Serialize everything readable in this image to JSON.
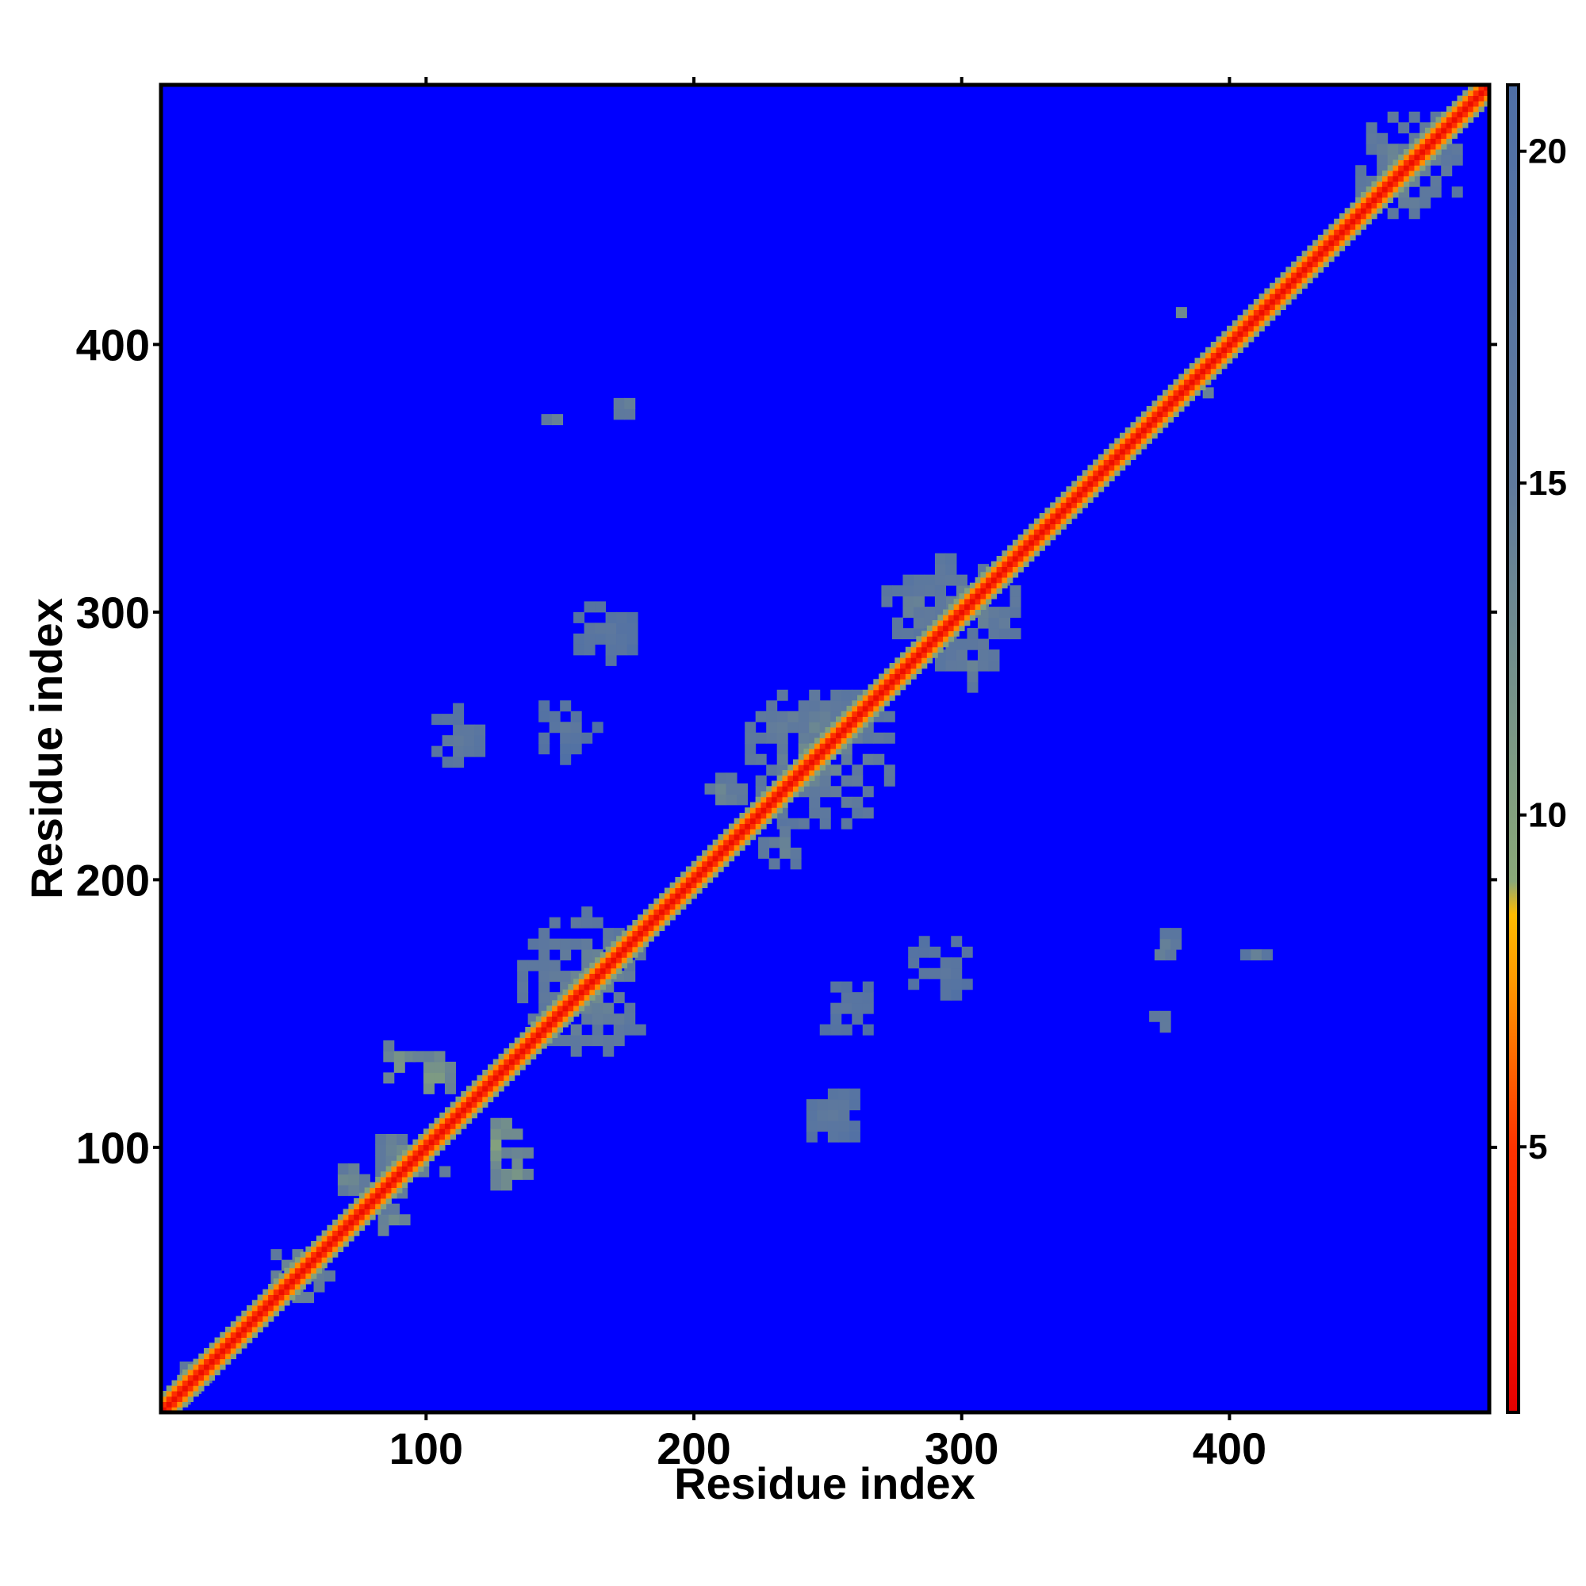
{
  "chart_data": {
    "type": "heatmap",
    "title": "",
    "xlabel": "Residue index",
    "ylabel": "Residue index",
    "xlim": [
      1,
      497
    ],
    "ylim": [
      1,
      497
    ],
    "x_ticks": [
      100,
      200,
      300,
      400
    ],
    "y_ticks": [
      100,
      200,
      300,
      400
    ],
    "colorbar": {
      "ticks": [
        5,
        10,
        15,
        20
      ],
      "range": [
        1,
        21
      ],
      "stops": [
        {
          "value": 1,
          "color": "#e60000"
        },
        {
          "value": 5,
          "color": "#ff3300"
        },
        {
          "value": 7.5,
          "color": "#ff9900"
        },
        {
          "value": 8.5,
          "color": "#ffbb00"
        },
        {
          "value": 9,
          "color": "#8aa878"
        },
        {
          "value": 15,
          "color": "#607a9c"
        },
        {
          "value": 21,
          "color": "#4f6fa6"
        }
      ],
      "background_color": "#0000ff"
    },
    "diagonal": {
      "core_value": 2,
      "band_halfwidth": 6
    },
    "contact_clusters": [
      {
        "x": 10,
        "y": 10,
        "r": 10,
        "value": 12
      },
      {
        "x": 50,
        "y": 50,
        "r": 12,
        "value": 11
      },
      {
        "x": 92,
        "y": 92,
        "r": 15,
        "value": 11
      },
      {
        "x": 158,
        "y": 158,
        "r": 28,
        "value": 12
      },
      {
        "x": 245,
        "y": 245,
        "r": 30,
        "value": 12
      },
      {
        "x": 300,
        "y": 300,
        "r": 22,
        "value": 12
      },
      {
        "x": 465,
        "y": 465,
        "r": 22,
        "value": 12
      },
      {
        "x": 130,
        "y": 90,
        "r": 10,
        "value": 10
      },
      {
        "x": 90,
        "y": 130,
        "r": 10,
        "value": 10
      },
      {
        "x": 100,
        "y": 125,
        "r": 9,
        "value": 9
      },
      {
        "x": 125,
        "y": 100,
        "r": 9,
        "value": 9
      },
      {
        "x": 70,
        "y": 85,
        "r": 7,
        "value": 11
      },
      {
        "x": 85,
        "y": 70,
        "r": 7,
        "value": 11
      },
      {
        "x": 145,
        "y": 372,
        "r": 6,
        "value": 12
      },
      {
        "x": 372,
        "y": 145,
        "r": 6,
        "value": 12
      },
      {
        "x": 172,
        "y": 374,
        "r": 6,
        "value": 12
      },
      {
        "x": 374,
        "y": 172,
        "r": 6,
        "value": 12
      },
      {
        "x": 375,
        "y": 175,
        "r": 5,
        "value": 13
      },
      {
        "x": 408,
        "y": 170,
        "r": 4,
        "value": 13
      },
      {
        "x": 380,
        "y": 410,
        "r": 4,
        "value": 12
      },
      {
        "x": 390,
        "y": 380,
        "r": 4,
        "value": 12
      },
      {
        "x": 280,
        "y": 300,
        "r": 14,
        "value": 13
      },
      {
        "x": 300,
        "y": 280,
        "r": 14,
        "value": 13
      },
      {
        "x": 110,
        "y": 250,
        "r": 12,
        "value": 14
      },
      {
        "x": 250,
        "y": 110,
        "r": 12,
        "value": 14
      },
      {
        "x": 290,
        "y": 165,
        "r": 14,
        "value": 15
      },
      {
        "x": 165,
        "y": 290,
        "r": 14,
        "value": 15
      },
      {
        "x": 255,
        "y": 150,
        "r": 12,
        "value": 15
      },
      {
        "x": 150,
        "y": 255,
        "r": 12,
        "value": 15
      },
      {
        "x": 230,
        "y": 210,
        "r": 10,
        "value": 12
      },
      {
        "x": 210,
        "y": 230,
        "r": 10,
        "value": 12
      }
    ]
  }
}
